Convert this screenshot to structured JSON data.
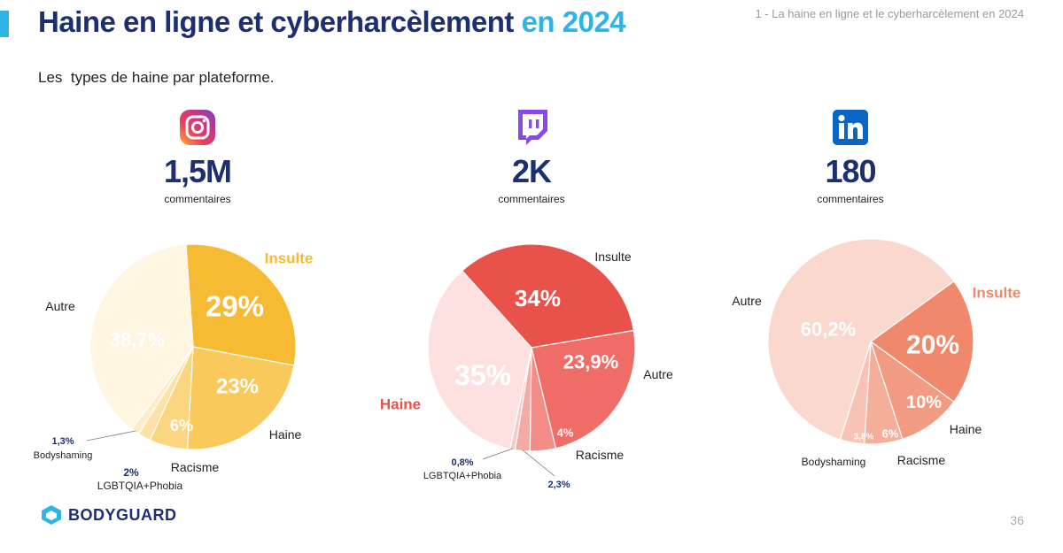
{
  "header": {
    "title_main": "Haine en ligne et cyberharcèlement",
    "title_highlight": "en 2024",
    "section_label": "1 - La haine en ligne et le cyberharcèlement en 2024",
    "subtitle": "Les  types de haine par plateforme."
  },
  "platforms": [
    {
      "icon": "instagram-icon",
      "count": "1,5M",
      "unit": "commentaires"
    },
    {
      "icon": "twitch-icon",
      "count": "2K",
      "unit": "commentaires"
    },
    {
      "icon": "linkedin-icon",
      "count": "180",
      "unit": "commentaires"
    }
  ],
  "chart_data": [
    {
      "type": "pie",
      "slices": [
        {
          "category": "Insulte",
          "value": 29,
          "label": "29%"
        },
        {
          "category": "Haine",
          "value": 23,
          "label": "23%"
        },
        {
          "category": "Racisme",
          "value": 6,
          "label": "6%"
        },
        {
          "category": "LGBTQIA+Phobia",
          "value": 2,
          "label": "2%"
        },
        {
          "category": "Bodyshaming",
          "value": 1.3,
          "label": "1,3%"
        },
        {
          "category": "Autre",
          "value": 38.7,
          "label": "38,7%"
        }
      ]
    },
    {
      "type": "pie",
      "slices": [
        {
          "category": "Insulte",
          "value": 34,
          "label": "34%"
        },
        {
          "category": "Autre",
          "value": 23.9,
          "label": "23,9%"
        },
        {
          "category": "Racisme",
          "value": 4,
          "label": "4%"
        },
        {
          "category": "",
          "value": 2.3,
          "label": "2,3%"
        },
        {
          "category": "LGBTQIA+Phobia",
          "value": 0.8,
          "label": "0,8%"
        },
        {
          "category": "Haine",
          "value": 35,
          "label": "35%"
        }
      ]
    },
    {
      "type": "pie",
      "slices": [
        {
          "category": "Insulte",
          "value": 20,
          "label": "20%"
        },
        {
          "category": "Haine",
          "value": 10,
          "label": "10%"
        },
        {
          "category": "Racisme",
          "value": 6,
          "label": "6%"
        },
        {
          "category": "Bodyshaming",
          "value": 3.8,
          "label": "3,8%"
        },
        {
          "category": "Autre",
          "value": 60.2,
          "label": "60,2%"
        }
      ]
    }
  ],
  "colors": {
    "navy": "#1b2f72",
    "cyan": "#2fb4e6",
    "instagram": [
      "#f6bb33",
      "#f9c95c",
      "#fbd57f",
      "#fde2a6",
      "#feecc6",
      "#fff5e0"
    ],
    "twitch": [
      "#e8524a",
      "#ef6c67",
      "#f28d89",
      "#f6aaa6",
      "#f9c9c7",
      "#fde1e0"
    ],
    "linkedin": [
      "#f0896c",
      "#f39b82",
      "#f5ae9a",
      "#f8c3b4",
      "#fbd8ce"
    ]
  },
  "footer": {
    "brand": "BODYGUARD",
    "page_number": "36"
  }
}
